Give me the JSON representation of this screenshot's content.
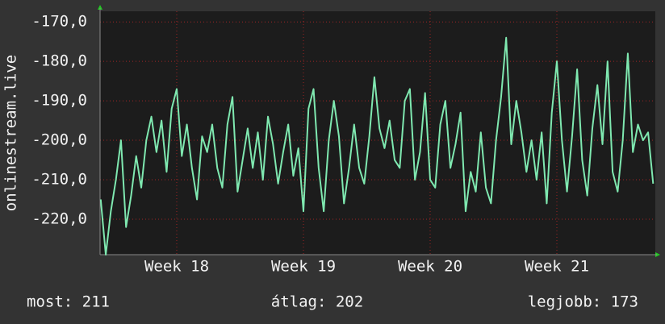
{
  "chart_data": {
    "type": "line",
    "ylabel": "onlinestream.live",
    "color": "#7fe8b0",
    "x": [
      17.4,
      17.44,
      17.48,
      17.52,
      17.56,
      17.6,
      17.64,
      17.68,
      17.72,
      17.76,
      17.8,
      17.84,
      17.88,
      17.92,
      17.96,
      18.0,
      18.04,
      18.08,
      18.12,
      18.16,
      18.2,
      18.24,
      18.28,
      18.32,
      18.36,
      18.4,
      18.44,
      18.48,
      18.52,
      18.56,
      18.6,
      18.64,
      18.68,
      18.72,
      18.76,
      18.8,
      18.84,
      18.88,
      18.92,
      18.96,
      19.0,
      19.04,
      19.08,
      19.12,
      19.16,
      19.2,
      19.24,
      19.28,
      19.32,
      19.36,
      19.4,
      19.44,
      19.48,
      19.52,
      19.56,
      19.6,
      19.64,
      19.68,
      19.72,
      19.76,
      19.8,
      19.84,
      19.88,
      19.92,
      19.96,
      20.0,
      20.04,
      20.08,
      20.12,
      20.16,
      20.2,
      20.24,
      20.28,
      20.32,
      20.36,
      20.4,
      20.44,
      20.48,
      20.52,
      20.56,
      20.6,
      20.64,
      20.68,
      20.72,
      20.76,
      20.8,
      20.84,
      20.88,
      20.92,
      20.96,
      21.0,
      21.04,
      21.08,
      21.12,
      21.16,
      21.2,
      21.24,
      21.28,
      21.32,
      21.36,
      21.4,
      21.44,
      21.48,
      21.52,
      21.56,
      21.6,
      21.64,
      21.68,
      21.72,
      21.76
    ],
    "values": [
      -215,
      -229,
      -218,
      -210,
      -200,
      -222,
      -214,
      -204,
      -212,
      -200,
      -194,
      -203,
      -195,
      -208,
      -192,
      -187,
      -204,
      -196,
      -207,
      -215,
      -199,
      -203,
      -196,
      -207,
      -212,
      -196,
      -189,
      -213,
      -205,
      -197,
      -207,
      -198,
      -210,
      -194,
      -201,
      -211,
      -203,
      -196,
      -209,
      -202,
      -218,
      -192,
      -187,
      -207,
      -218,
      -200,
      -190,
      -199,
      -216,
      -207,
      -196,
      -207,
      -211,
      -199,
      -184,
      -197,
      -202,
      -195,
      -205,
      -207,
      -190,
      -187,
      -210,
      -203,
      -188,
      -210,
      -212,
      -196,
      -190,
      -207,
      -201,
      -193,
      -218,
      -208,
      -213,
      -198,
      -212,
      -216,
      -200,
      -189,
      -174,
      -201,
      -190,
      -198,
      -208,
      -200,
      -210,
      -198,
      -216,
      -193,
      -180,
      -200,
      -213,
      -199,
      -182,
      -205,
      -214,
      -197,
      -186,
      -201,
      -180,
      -208,
      -213,
      -200,
      -178,
      -203,
      -196,
      -200,
      -198,
      -211
    ],
    "xlim": [
      17.395,
      21.777
    ],
    "xticks": [
      {
        "value": 18,
        "label": "Week 18"
      },
      {
        "value": 19,
        "label": "Week 19"
      },
      {
        "value": 20,
        "label": "Week 20"
      },
      {
        "value": 21,
        "label": "Week 21"
      }
    ],
    "ylim": [
      -229,
      -167.3
    ],
    "yticks": [
      {
        "value": -170,
        "label": "-170,0"
      },
      {
        "value": -180,
        "label": "-180,0"
      },
      {
        "value": -190,
        "label": "-190,0"
      },
      {
        "value": -200,
        "label": "-200,0"
      },
      {
        "value": -210,
        "label": "-210,0"
      },
      {
        "value": -220,
        "label": "-220,0"
      }
    ],
    "grid": true,
    "stats": [
      "most: 211",
      "átlag: 202",
      "legjobb: 173"
    ]
  }
}
